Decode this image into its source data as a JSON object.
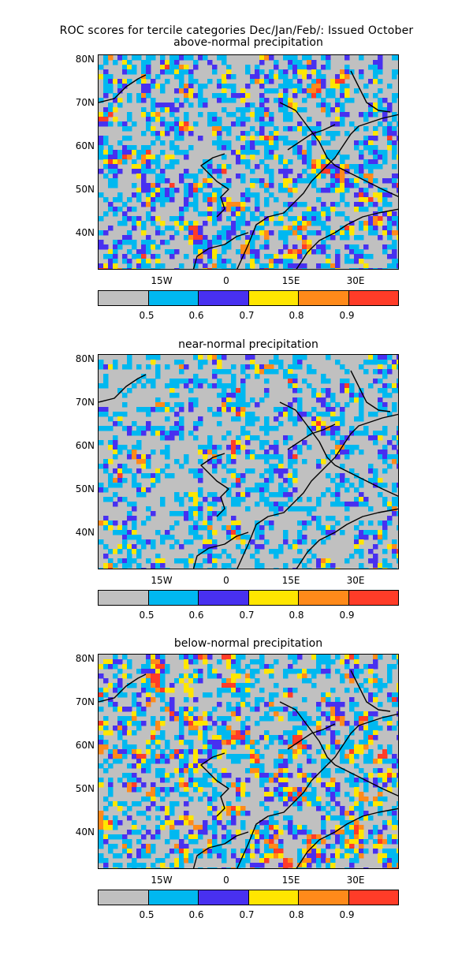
{
  "title": "ROC scores for tercile categories Dec/Jan/Feb/: Issued October",
  "y_ticks": [
    "80N",
    "70N",
    "60N",
    "50N",
    "40N"
  ],
  "x_ticks": [
    "15W",
    "0",
    "15E",
    "30E"
  ],
  "colorbar": {
    "colors": [
      "#c0c0c0",
      "#00b8f0",
      "#4830f0",
      "#ffe600",
      "#ff8a1a",
      "#ff3c28"
    ],
    "labels": [
      "0.5",
      "0.6",
      "0.7",
      "0.8",
      "0.9"
    ]
  },
  "panels": [
    {
      "title": "above-normal precipitation",
      "weights": [
        0.5,
        0.27,
        0.13,
        0.06,
        0.025,
        0.015
      ]
    },
    {
      "title": "near-normal precipitation",
      "weights": [
        0.62,
        0.25,
        0.08,
        0.035,
        0.01,
        0.005
      ]
    },
    {
      "title": "below-normal precipitation",
      "weights": [
        0.5,
        0.25,
        0.1,
        0.08,
        0.045,
        0.025
      ]
    }
  ]
}
